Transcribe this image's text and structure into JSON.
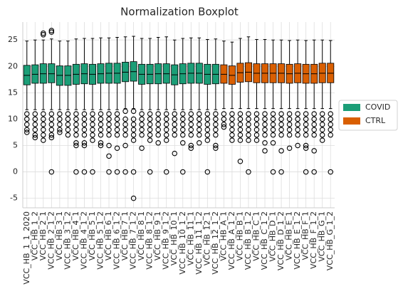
{
  "chart_data": {
    "type": "box",
    "title": "Normalization Boxplot",
    "categories": [
      "VCC_HB_1_1_2020",
      "VCC_HB_1_2",
      "VCC_HB_2_1",
      "VCC_HB_2_1_2",
      "VCC_HB_3_1",
      "VCC_HB_3_1_2",
      "VCC_HB_4_1",
      "VCC_HB_4_1_2",
      "VCC_HB_5_1",
      "VCC_HB_5_1_2",
      "VCC_HB_6_1",
      "VCC_HB_6_1_2",
      "VCC_HB_7_1",
      "VCC_HB_7_1_2",
      "VCC_HB_8_1",
      "VCC_HB_8_1_2",
      "VCC_HB_9_1",
      "VCC_HB_9_1_2",
      "VCC_HB_10_1",
      "VCC_HB_10_1_2",
      "VCC_HB_11_1",
      "VCC_HB_11_1_2",
      "VCC_HB_12_1",
      "VCC_HB_12_1_2",
      "VCC_HB_A_1",
      "VCC_HB_A_1_2",
      "VCC_HB_B_1",
      "VCC_HB_B_1_2",
      "VCC_HB_C_1",
      "VCC_HB_C_1_2",
      "VCC_HB_D_1",
      "VCC_HB_D_1_2",
      "VCC_HB_E_1",
      "VCC_HB_E_1_2",
      "VCC_HB_F_1",
      "VCC_HB_F_1_2",
      "VCC_HB_G_1",
      "VCC_HB_G_1_2"
    ],
    "series": [
      {
        "name": "COVID",
        "color": "#1b9e77",
        "boxes": [
          {
            "low": 11.8,
            "q1": 16.5,
            "median": 18.3,
            "q3": 20.2,
            "high": 24.8,
            "outliers": [
              11,
              10,
              9,
              8,
              7.5
            ]
          },
          {
            "low": 11.8,
            "q1": 16.8,
            "median": 18.5,
            "q3": 20.3,
            "high": 25,
            "outliers": [
              11,
              10,
              9,
              8,
              7,
              6.5
            ]
          },
          {
            "low": 11.8,
            "q1": 16.8,
            "median": 18.6,
            "q3": 20.5,
            "high": 25,
            "outliers": [
              11,
              10,
              9,
              8,
              7,
              6,
              26,
              26.3
            ]
          },
          {
            "low": 11.8,
            "q1": 16.9,
            "median": 18.6,
            "q3": 20.5,
            "high": 25.2,
            "outliers": [
              11,
              10,
              9,
              8,
              7,
              6.5,
              0,
              26.5,
              26.8
            ]
          },
          {
            "low": 11.8,
            "q1": 16.4,
            "median": 18.3,
            "q3": 20.1,
            "high": 24.8,
            "outliers": [
              11,
              10,
              9,
              8,
              7.5
            ]
          },
          {
            "low": 11.8,
            "q1": 16.4,
            "median": 18.3,
            "q3": 20.1,
            "high": 24.8,
            "outliers": [
              11,
              10,
              9,
              8,
              7
            ]
          },
          {
            "low": 11.8,
            "q1": 16.6,
            "median": 18.5,
            "q3": 20.4,
            "high": 25.2,
            "outliers": [
              11,
              10,
              9,
              8,
              7,
              5.5,
              5,
              0
            ]
          },
          {
            "low": 11.8,
            "q1": 16.7,
            "median": 18.6,
            "q3": 20.5,
            "high": 25.3,
            "outliers": [
              11,
              10,
              9,
              8,
              7,
              5.5,
              5,
              0
            ]
          },
          {
            "low": 11.8,
            "q1": 16.6,
            "median": 18.5,
            "q3": 20.4,
            "high": 25.3,
            "outliers": [
              11,
              10,
              9,
              8,
              7,
              6,
              0
            ]
          },
          {
            "low": 11.8,
            "q1": 16.8,
            "median": 18.6,
            "q3": 20.5,
            "high": 25.4,
            "outliers": [
              11,
              10,
              9,
              8,
              7,
              5.5,
              5
            ]
          },
          {
            "low": 11.8,
            "q1": 16.8,
            "median": 18.7,
            "q3": 20.6,
            "high": 25.4,
            "outliers": [
              11,
              10,
              9,
              8,
              7,
              5,
              3,
              0
            ]
          },
          {
            "low": 11.8,
            "q1": 16.8,
            "median": 18.7,
            "q3": 20.6,
            "high": 25.5,
            "outliers": [
              11,
              10,
              9,
              8,
              7,
              4.5,
              0
            ]
          },
          {
            "low": 12,
            "q1": 17.1,
            "median": 18.9,
            "q3": 20.8,
            "high": 25.6,
            "outliers": [
              11.5,
              10,
              9,
              8,
              7,
              5,
              0
            ]
          },
          {
            "low": 12,
            "q1": 17.2,
            "median": 19,
            "q3": 20.9,
            "high": 25.7,
            "outliers": [
              11.5,
              10,
              9,
              8,
              7,
              6,
              0,
              -5
            ]
          },
          {
            "low": 11.8,
            "q1": 16.6,
            "median": 18.5,
            "q3": 20.4,
            "high": 25.3,
            "outliers": [
              11,
              10,
              9,
              8,
              7,
              4.5
            ]
          },
          {
            "low": 11.8,
            "q1": 16.7,
            "median": 18.5,
            "q3": 20.4,
            "high": 25.3,
            "outliers": [
              11,
              10,
              9,
              8,
              7,
              6,
              0
            ]
          },
          {
            "low": 11.8,
            "q1": 16.7,
            "median": 18.6,
            "q3": 20.5,
            "high": 25.5,
            "outliers": [
              11,
              10,
              9,
              8,
              7,
              5.5
            ]
          },
          {
            "low": 11.8,
            "q1": 16.8,
            "median": 18.6,
            "q3": 20.5,
            "high": 25.6,
            "outliers": [
              11,
              10,
              9,
              8,
              7,
              6,
              0
            ]
          },
          {
            "low": 11.8,
            "q1": 16.5,
            "median": 18.4,
            "q3": 20.3,
            "high": 25,
            "outliers": [
              11,
              10,
              9,
              8,
              7,
              3.5
            ]
          },
          {
            "low": 11.8,
            "q1": 16.7,
            "median": 18.6,
            "q3": 20.5,
            "high": 25.3,
            "outliers": [
              11,
              10,
              9,
              8,
              7,
              5.5,
              0
            ]
          },
          {
            "low": 11.8,
            "q1": 16.8,
            "median": 18.7,
            "q3": 20.6,
            "high": 25.4,
            "outliers": [
              11,
              10,
              9,
              8,
              7,
              5,
              4.5
            ]
          },
          {
            "low": 11.8,
            "q1": 16.8,
            "median": 18.7,
            "q3": 20.6,
            "high": 25.4,
            "outliers": [
              11,
              10,
              9,
              8,
              7,
              5.5
            ]
          },
          {
            "low": 11.8,
            "q1": 16.6,
            "median": 18.5,
            "q3": 20.4,
            "high": 25.1,
            "outliers": [
              11,
              10,
              9,
              8,
              7,
              6,
              0
            ]
          },
          {
            "low": 11.8,
            "q1": 16.7,
            "median": 18.5,
            "q3": 20.4,
            "high": 25.2,
            "outliers": [
              11,
              10,
              9,
              8,
              7,
              5,
              4.5
            ]
          }
        ]
      },
      {
        "name": "CTRL",
        "color": "#d95f02",
        "boxes": [
          {
            "low": 12,
            "q1": 16.8,
            "median": 18.5,
            "q3": 20.3,
            "high": 24.8,
            "outliers": [
              11,
              10,
              9,
              8.5
            ]
          },
          {
            "low": 12,
            "q1": 16.6,
            "median": 18.3,
            "q3": 20.1,
            "high": 24.6,
            "outliers": [
              11,
              10,
              9,
              8,
              7,
              6
            ]
          },
          {
            "low": 12,
            "q1": 17,
            "median": 18.8,
            "q3": 20.6,
            "high": 25.3,
            "outliers": [
              11,
              10,
              9,
              8,
              7,
              6,
              2
            ]
          },
          {
            "low": 12,
            "q1": 17.1,
            "median": 18.9,
            "q3": 20.7,
            "high": 25.6,
            "outliers": [
              11,
              10,
              9,
              8,
              7,
              6,
              0
            ]
          },
          {
            "low": 12,
            "q1": 16.9,
            "median": 18.7,
            "q3": 20.5,
            "high": 25.1,
            "outliers": [
              11,
              10,
              9,
              8,
              7,
              6
            ]
          },
          {
            "low": 12,
            "q1": 16.9,
            "median": 18.7,
            "q3": 20.5,
            "high": 25.1,
            "outliers": [
              11,
              10,
              9,
              8,
              7,
              5.5,
              4
            ]
          },
          {
            "low": 12,
            "q1": 16.9,
            "median": 18.7,
            "q3": 20.5,
            "high": 25,
            "outliers": [
              11,
              10,
              9,
              8,
              7,
              5.5,
              0
            ]
          },
          {
            "low": 12,
            "q1": 16.9,
            "median": 18.7,
            "q3": 20.5,
            "high": 25,
            "outliers": [
              11,
              10,
              9,
              8,
              7,
              4,
              0
            ]
          },
          {
            "low": 12,
            "q1": 16.8,
            "median": 18.6,
            "q3": 20.4,
            "high": 24.9,
            "outliers": [
              11,
              10,
              9,
              8,
              7,
              4.5
            ]
          },
          {
            "low": 12,
            "q1": 16.9,
            "median": 18.7,
            "q3": 20.5,
            "high": 25,
            "outliers": [
              11,
              10,
              9,
              8,
              7,
              5
            ]
          },
          {
            "low": 12,
            "q1": 16.8,
            "median": 18.6,
            "q3": 20.4,
            "high": 24.9,
            "outliers": [
              11,
              10,
              9,
              8,
              7,
              5,
              4.5,
              0
            ]
          },
          {
            "low": 12,
            "q1": 16.8,
            "median": 18.6,
            "q3": 20.4,
            "high": 25,
            "outliers": [
              11,
              10,
              9,
              8,
              7,
              4,
              0
            ]
          },
          {
            "low": 12,
            "q1": 16.9,
            "median": 18.7,
            "q3": 20.6,
            "high": 25,
            "outliers": [
              11,
              10,
              9,
              8,
              7,
              6
            ]
          },
          {
            "low": 12,
            "q1": 16.9,
            "median": 18.7,
            "q3": 20.6,
            "high": 24.9,
            "outliers": [
              11,
              10,
              9,
              8,
              7,
              0
            ]
          }
        ]
      }
    ],
    "ylim": [
      -6.8,
      28.4
    ],
    "yticks": [
      -5,
      0,
      5,
      10,
      15,
      20,
      25
    ],
    "grid": true,
    "legend": "right"
  }
}
